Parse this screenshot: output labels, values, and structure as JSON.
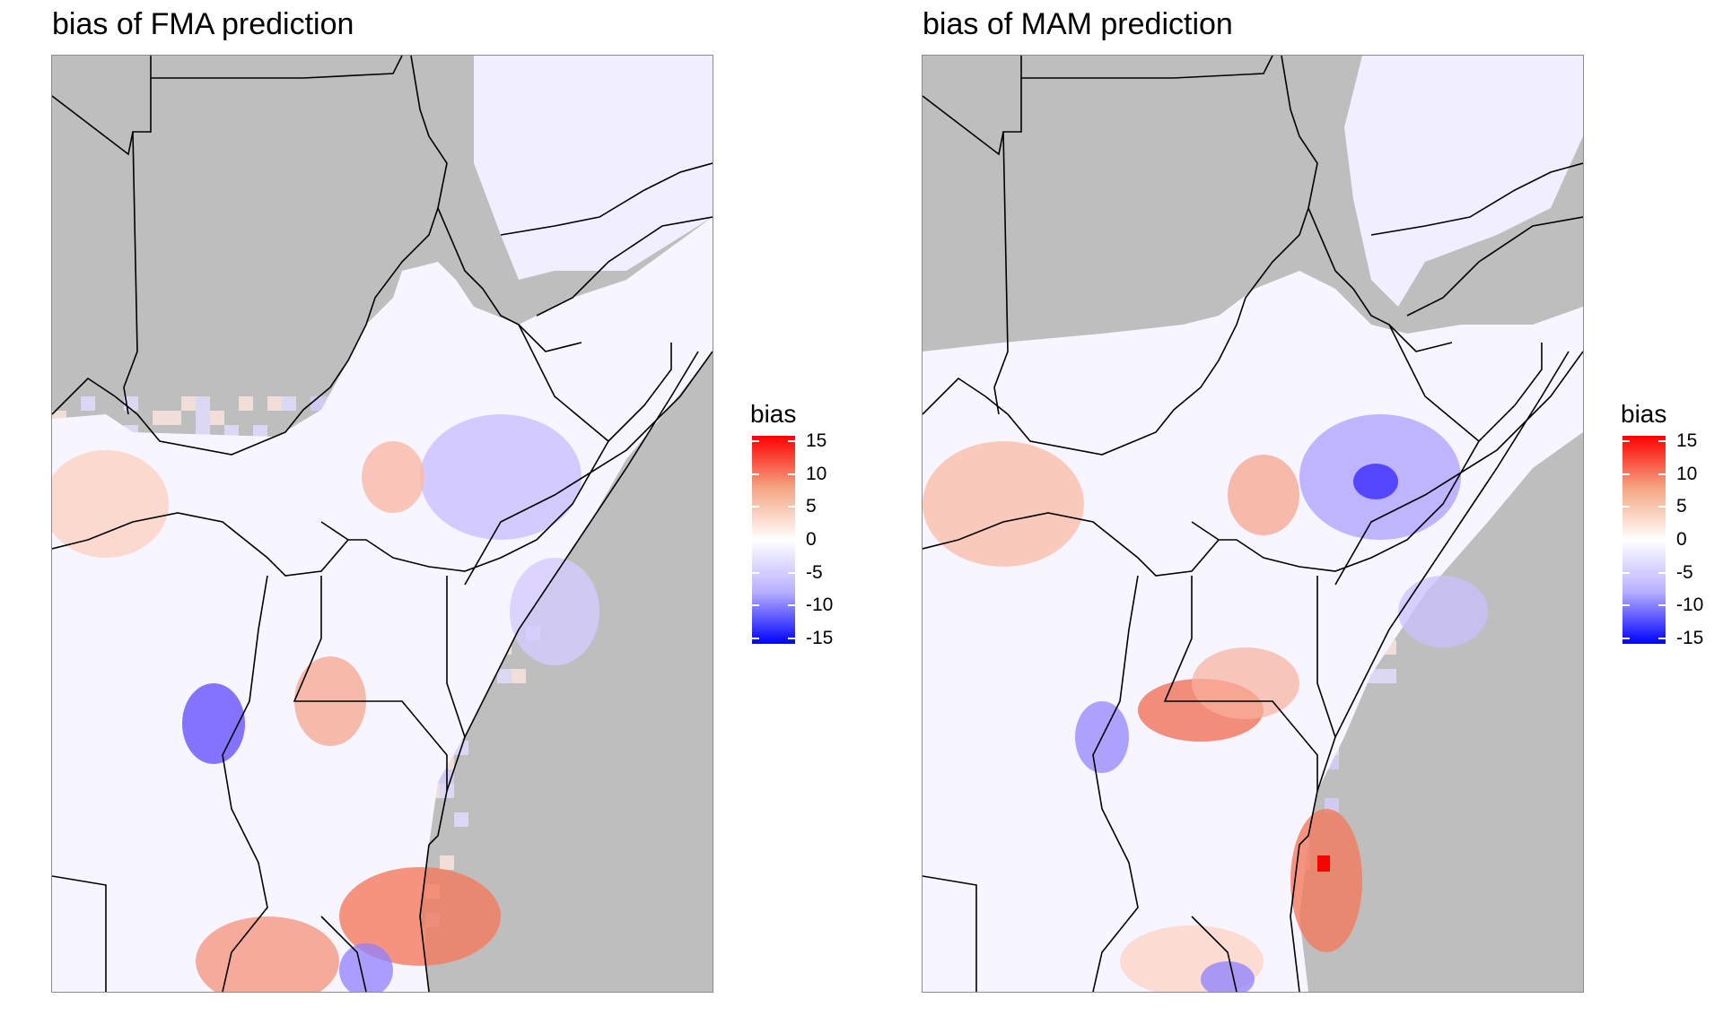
{
  "panels": [
    {
      "title": "bias of FMA prediction",
      "season": "FMA"
    },
    {
      "title": "bias of MAM prediction",
      "season": "MAM"
    }
  ],
  "legend": {
    "title": "bias",
    "ticks": [
      "15",
      "10",
      "5",
      "0",
      "-5",
      "-10",
      "-15"
    ],
    "range": [
      -15,
      15
    ],
    "colors": {
      "high": "#ff0000",
      "mid": "#ffffff",
      "low": "#0000ff",
      "no_data": "#bebebe"
    }
  }
}
